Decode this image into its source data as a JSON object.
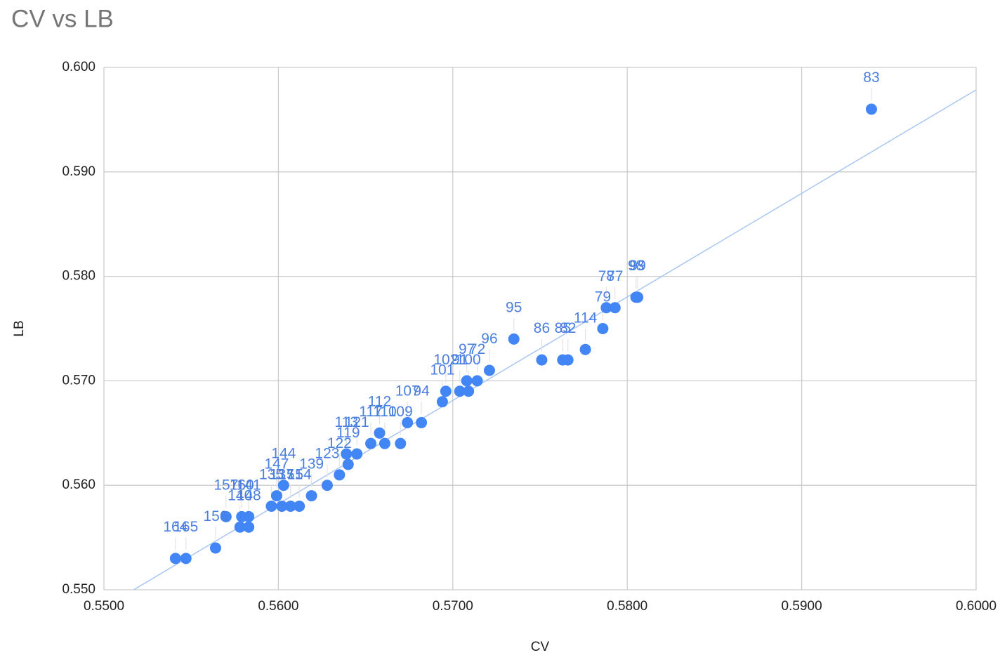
{
  "chart_data": {
    "type": "scatter",
    "title": "CV vs LB",
    "x_label": "CV",
    "y_label": "LB",
    "x": [
      0.594,
      0.5806,
      0.5805,
      0.5793,
      0.5788,
      0.5786,
      0.5776,
      0.5766,
      0.5763,
      0.5751,
      0.5735,
      0.5721,
      0.5714,
      0.5708,
      0.5709,
      0.5704,
      0.5696,
      0.5694,
      0.5682,
      0.5674,
      0.567,
      0.5661,
      0.5658,
      0.5653,
      0.5645,
      0.5639,
      0.564,
      0.5635,
      0.5628,
      0.5619,
      0.5612,
      0.5607,
      0.5603,
      0.5602,
      0.5599,
      0.5596,
      0.5583,
      0.5579,
      0.5583,
      0.5578,
      0.557,
      0.5564,
      0.5547,
      0.5541
    ],
    "y": [
      0.596,
      0.578,
      0.578,
      0.577,
      0.577,
      0.575,
      0.573,
      0.572,
      0.572,
      0.572,
      0.574,
      0.571,
      0.57,
      0.57,
      0.569,
      0.569,
      0.569,
      0.568,
      0.566,
      0.566,
      0.564,
      0.564,
      0.565,
      0.564,
      0.563,
      0.563,
      0.562,
      0.561,
      0.56,
      0.559,
      0.558,
      0.558,
      0.56,
      0.558,
      0.559,
      0.558,
      0.557,
      0.557,
      0.556,
      0.556,
      0.557,
      0.554,
      0.553,
      0.553
    ],
    "labels": [
      "83",
      "99",
      "98",
      "77",
      "78",
      "79",
      "114",
      "82",
      "85",
      "86",
      "95",
      "96",
      "72",
      "97",
      "100",
      "91",
      "102",
      "101",
      "94",
      "107",
      "109",
      "110",
      "112",
      "117",
      "121",
      "113",
      "119",
      "122",
      "123",
      "139",
      "154",
      "151",
      "144",
      "137",
      "147",
      "135",
      "141",
      "160",
      "148",
      "140",
      "157",
      "156",
      "165",
      "164"
    ],
    "color": "#4285f4",
    "label_color": "#4a7fe0",
    "trendline": true,
    "trendline_color": "#a9c6f2",
    "grid": true,
    "xlim": [
      0.55,
      0.6
    ],
    "ylim": [
      0.55,
      0.6
    ],
    "xticks": [
      {
        "value": 0.55,
        "label": "0.5500"
      },
      {
        "value": 0.56,
        "label": "0.5600"
      },
      {
        "value": 0.57,
        "label": "0.5700"
      },
      {
        "value": 0.58,
        "label": "0.5800"
      },
      {
        "value": 0.59,
        "label": "0.5900"
      },
      {
        "value": 0.6,
        "label": "0.6000"
      }
    ],
    "yticks": [
      {
        "value": 0.55,
        "label": "0.550"
      },
      {
        "value": 0.56,
        "label": "0.560"
      },
      {
        "value": 0.57,
        "label": "0.570"
      },
      {
        "value": 0.58,
        "label": "0.580"
      },
      {
        "value": 0.59,
        "label": "0.590"
      },
      {
        "value": 0.6,
        "label": "0.600"
      }
    ]
  }
}
